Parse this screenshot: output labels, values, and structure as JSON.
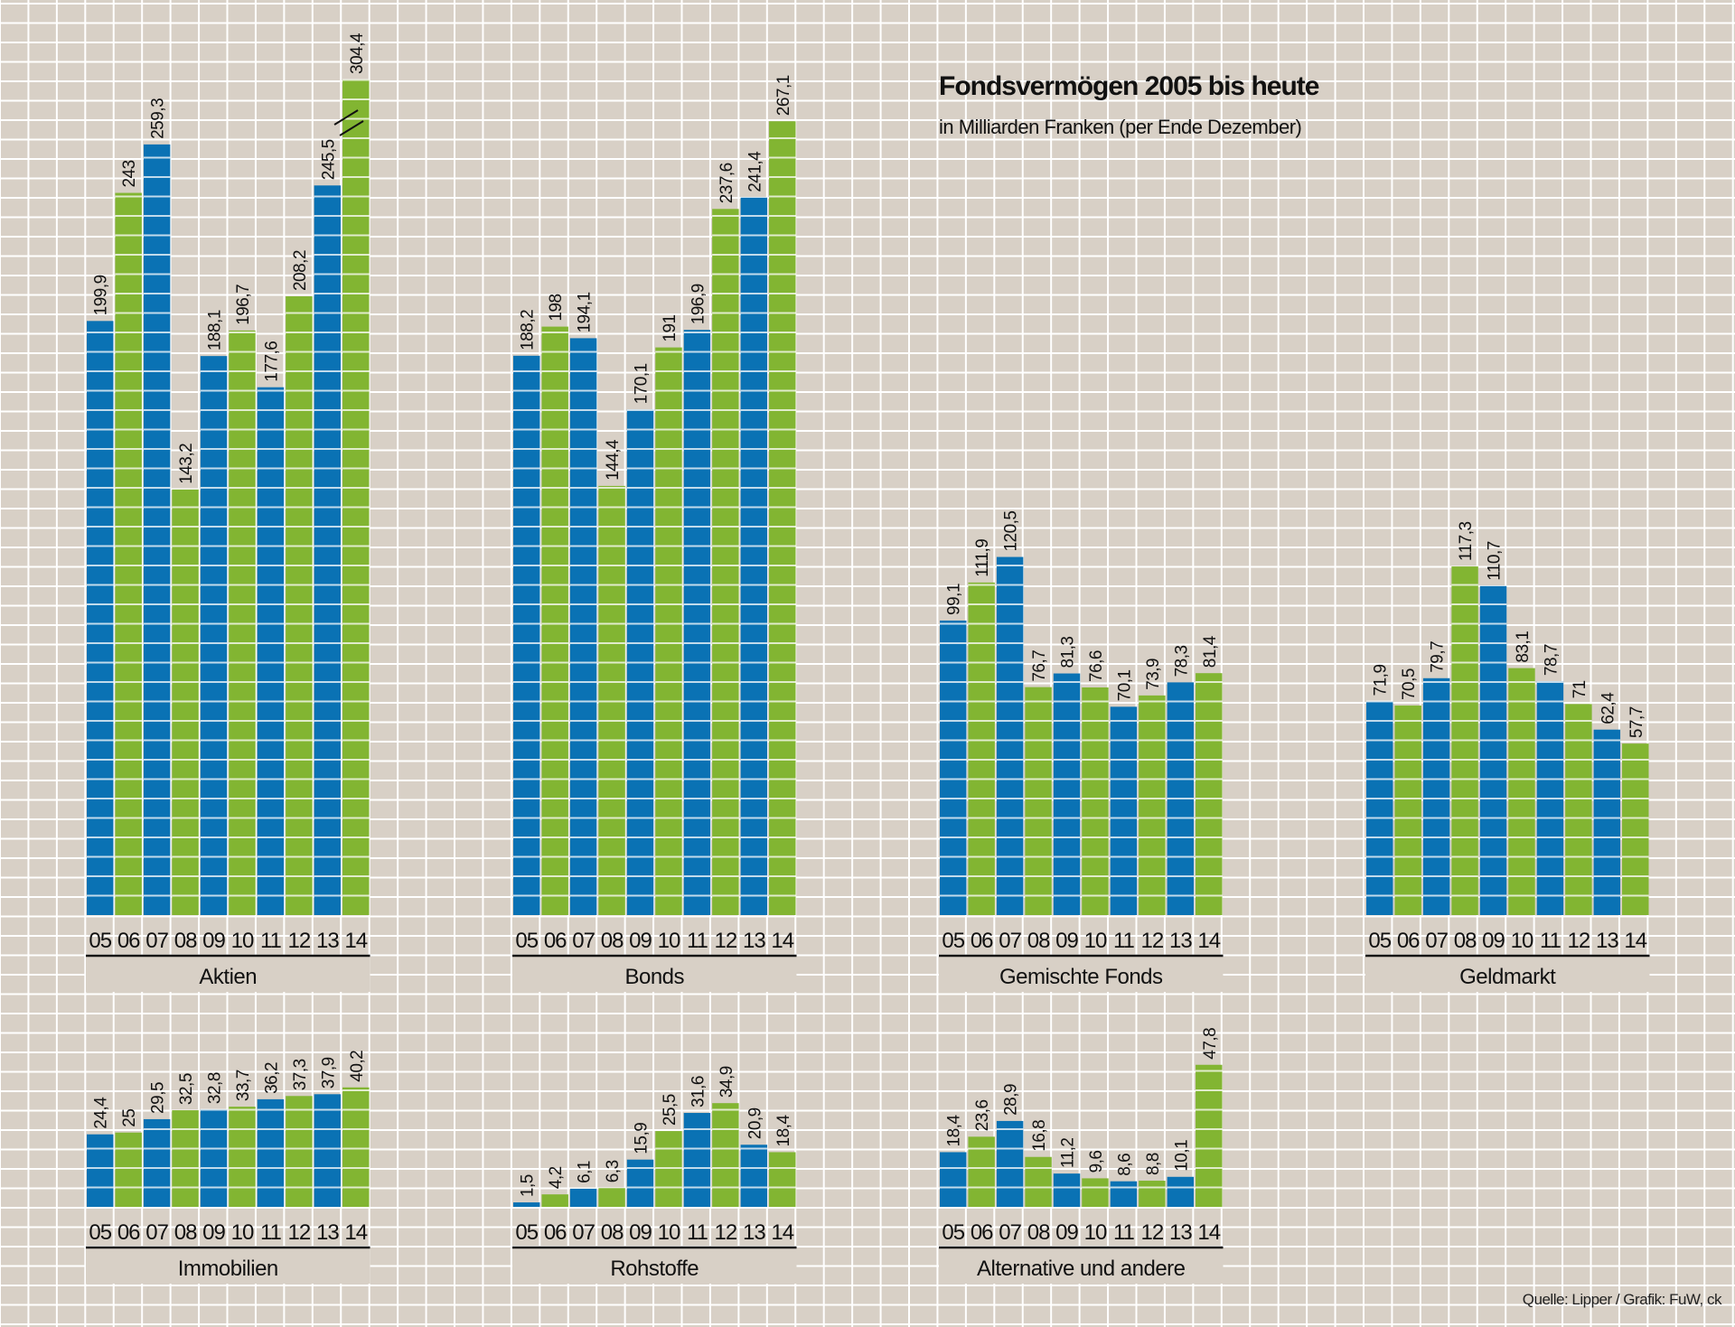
{
  "chart_data": {
    "type": "bar",
    "title": "Fondsvermögen 2005 bis heute",
    "subtitle": "in Milliarden Franken (per Ende Dezember)",
    "source": "Quelle: Lipper / Grafik: FuW, ck",
    "categories": [
      "05",
      "06",
      "07",
      "08",
      "09",
      "10",
      "11",
      "12",
      "13",
      "14"
    ],
    "colors": {
      "odd": "#0a72b4",
      "even": "#82b532"
    },
    "grid": true,
    "panels": [
      {
        "name": "Aktien",
        "values": [
          199.9,
          243,
          259.3,
          143.2,
          188.1,
          196.7,
          177.6,
          208.2,
          245.5,
          304.4
        ],
        "labels": [
          "199,9",
          "243",
          "259,3",
          "143,2",
          "188,1",
          "196,7",
          "177,6",
          "208,2",
          "245,5",
          "304,4"
        ],
        "axis_break_on": "14"
      },
      {
        "name": "Bonds",
        "values": [
          188.2,
          198,
          194.1,
          144.4,
          170.1,
          191,
          196.9,
          237.6,
          241.4,
          267.1
        ],
        "labels": [
          "188,2",
          "198",
          "194,1",
          "144,4",
          "170,1",
          "191",
          "196,9",
          "237,6",
          "241,4",
          "267,1"
        ]
      },
      {
        "name": "Gemischte Fonds",
        "values": [
          99.1,
          111.9,
          120.5,
          76.7,
          81.3,
          76.6,
          70.1,
          73.9,
          78.3,
          81.4
        ],
        "labels": [
          "99,1",
          "111,9",
          "120,5",
          "76,7",
          "81,3",
          "76,6",
          "70,1",
          "73,9",
          "78,3",
          "81,4"
        ]
      },
      {
        "name": "Geldmarkt",
        "values": [
          71.9,
          70.5,
          79.7,
          117.3,
          110.7,
          83.1,
          78.7,
          71,
          62.4,
          57.7
        ],
        "labels": [
          "71,9",
          "70,5",
          "79,7",
          "117,3",
          "110,7",
          "83,1",
          "78,7",
          "71",
          "62,4",
          "57,7"
        ]
      },
      {
        "name": "Immobilien",
        "values": [
          24.4,
          25,
          29.5,
          32.5,
          32.8,
          33.7,
          36.2,
          37.3,
          37.9,
          40.2
        ],
        "labels": [
          "24,4",
          "25",
          "29,5",
          "32,5",
          "32,8",
          "33,7",
          "36,2",
          "37,3",
          "37,9",
          "40,2"
        ]
      },
      {
        "name": "Rohstoffe",
        "values": [
          1.5,
          4.2,
          6.1,
          6.3,
          15.9,
          25.5,
          31.6,
          34.9,
          20.9,
          18.4
        ],
        "labels": [
          "1,5",
          "4,2",
          "6,1",
          "6,3",
          "15,9",
          "25,5",
          "31,6",
          "34,9",
          "20,9",
          "18,4"
        ]
      },
      {
        "name": "Alternative und andere",
        "values": [
          18.4,
          23.6,
          28.9,
          16.8,
          11.2,
          9.6,
          8.6,
          8.8,
          10.1,
          47.8
        ],
        "labels": [
          "18,4",
          "23,6",
          "28,9",
          "16,8",
          "11,2",
          "9,6",
          "8,6",
          "8,8",
          "10,1",
          "47,8"
        ]
      }
    ]
  }
}
